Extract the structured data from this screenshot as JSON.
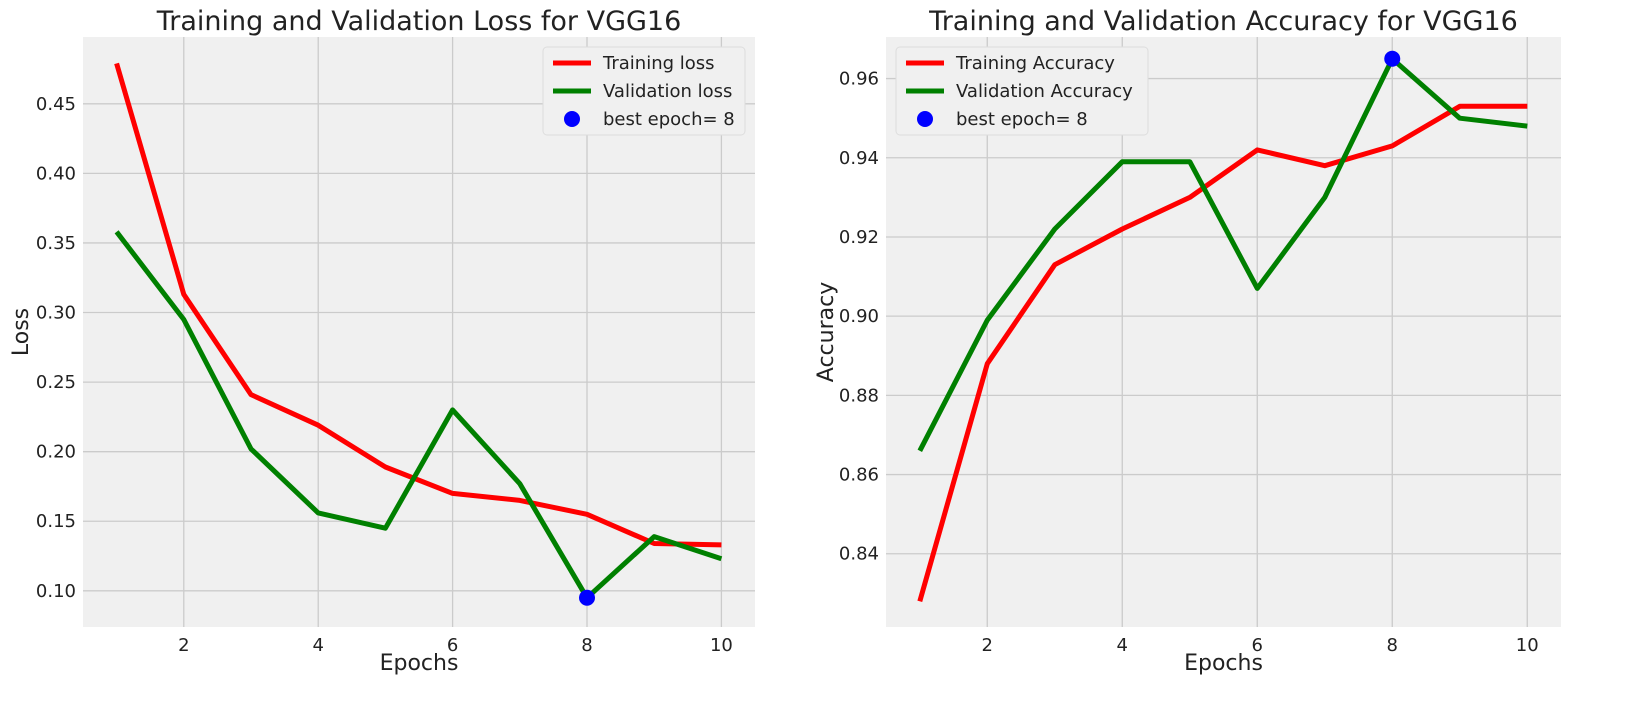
{
  "chart_data": [
    {
      "type": "line",
      "title": "Training and Validation Loss for VGG16",
      "xlabel": "Epochs",
      "ylabel": "Loss",
      "xlim": [
        0.5,
        10.5
      ],
      "ylim": [
        0.074,
        0.498
      ],
      "xticks": [
        2,
        4,
        6,
        8,
        10
      ],
      "yticks": [
        0.1,
        0.15,
        0.2,
        0.25,
        0.3,
        0.35,
        0.4,
        0.45
      ],
      "ytick_labels": [
        "0.10",
        "0.15",
        "0.20",
        "0.25",
        "0.30",
        "0.35",
        "0.40",
        "0.45"
      ],
      "grid": true,
      "legend_position": "upper right",
      "x": [
        1,
        2,
        3,
        4,
        5,
        6,
        7,
        8,
        9,
        10
      ],
      "series": [
        {
          "name": "Training loss",
          "color": "#ff0000",
          "values": [
            0.479,
            0.313,
            0.241,
            0.219,
            0.189,
            0.17,
            0.165,
            0.155,
            0.134,
            0.133
          ]
        },
        {
          "name": "Validation loss",
          "color": "#008000",
          "values": [
            0.358,
            0.295,
            0.202,
            0.156,
            0.145,
            0.23,
            0.177,
            0.095,
            0.139,
            0.123
          ]
        }
      ],
      "marker": {
        "name": "best epoch= 8",
        "color": "#0000ff",
        "x": 8,
        "y": 0.095
      }
    },
    {
      "type": "line",
      "title": "Training and Validation Accuracy for VGG16",
      "xlabel": "Epochs",
      "ylabel": "Accuracy",
      "xlim": [
        0.5,
        10.5
      ],
      "ylim": [
        0.8215,
        0.9705
      ],
      "xticks": [
        2,
        4,
        6,
        8,
        10
      ],
      "yticks": [
        0.84,
        0.86,
        0.88,
        0.9,
        0.92,
        0.94,
        0.96
      ],
      "ytick_labels": [
        "0.84",
        "0.86",
        "0.88",
        "0.90",
        "0.92",
        "0.94",
        "0.96"
      ],
      "grid": true,
      "legend_position": "upper left",
      "x": [
        1,
        2,
        3,
        4,
        5,
        6,
        7,
        8,
        9,
        10
      ],
      "series": [
        {
          "name": "Training Accuracy",
          "color": "#ff0000",
          "values": [
            0.828,
            0.888,
            0.913,
            0.922,
            0.93,
            0.942,
            0.938,
            0.943,
            0.953,
            0.953
          ]
        },
        {
          "name": "Validation Accuracy",
          "color": "#008000",
          "values": [
            0.866,
            0.899,
            0.922,
            0.939,
            0.939,
            0.907,
            0.93,
            0.965,
            0.95,
            0.948
          ]
        }
      ],
      "marker": {
        "name": "best epoch= 8",
        "color": "#0000ff",
        "x": 8,
        "y": 0.965
      }
    }
  ]
}
